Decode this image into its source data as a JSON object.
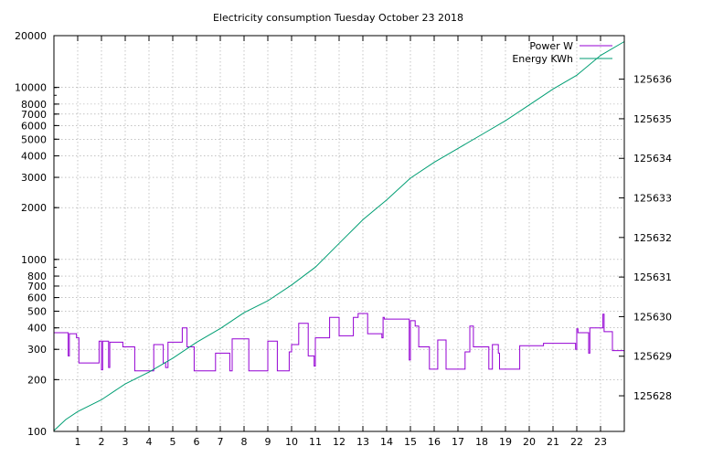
{
  "chart_data": {
    "type": "line",
    "title": "Electricity consumption Tuesday October 23 2018",
    "xlabel": "",
    "xlim": [
      0,
      24
    ],
    "xticks": [
      "1",
      "2",
      "3",
      "4",
      "5",
      "6",
      "7",
      "8",
      "9",
      "10",
      "11",
      "12",
      "13",
      "14",
      "15",
      "16",
      "17",
      "18",
      "19",
      "20",
      "21",
      "22",
      "23"
    ],
    "ylabel_left": "",
    "ylim_left": [
      100,
      20000
    ],
    "yscale_left": "log",
    "yticks_left": [
      "100",
      "200",
      "300",
      "400",
      "500",
      "600",
      "700",
      "800",
      "1000",
      "2000",
      "3000",
      "4000",
      "5000",
      "6000",
      "7000",
      "8000",
      "10000",
      "20000"
    ],
    "ylabel_right": "",
    "ylim_right": [
      125627.1,
      125637.1
    ],
    "yticks_right": [
      "125628",
      "125629",
      "125630",
      "125631",
      "125632",
      "125633",
      "125634",
      "125635",
      "125636"
    ],
    "grid": true,
    "legend_position": "top-right",
    "series": [
      {
        "name": "Power W",
        "axis": "left",
        "color": "#9400d3",
        "points": [
          [
            0,
            375
          ],
          [
            0.6,
            375
          ],
          [
            0.6,
            275
          ],
          [
            0.65,
            275
          ],
          [
            0.65,
            370
          ],
          [
            0.95,
            370
          ],
          [
            0.95,
            350
          ],
          [
            1.05,
            350
          ],
          [
            1.05,
            250
          ],
          [
            1.9,
            250
          ],
          [
            1.9,
            335
          ],
          [
            2.0,
            335
          ],
          [
            2.0,
            228
          ],
          [
            2.05,
            228
          ],
          [
            2.05,
            335
          ],
          [
            2.3,
            335
          ],
          [
            2.3,
            235
          ],
          [
            2.35,
            235
          ],
          [
            2.35,
            330
          ],
          [
            2.9,
            330
          ],
          [
            2.9,
            310
          ],
          [
            3.4,
            310
          ],
          [
            3.4,
            225
          ],
          [
            4.2,
            225
          ],
          [
            4.2,
            320
          ],
          [
            4.6,
            320
          ],
          [
            4.6,
            250
          ],
          [
            4.7,
            250
          ],
          [
            4.7,
            235
          ],
          [
            4.8,
            235
          ],
          [
            4.8,
            330
          ],
          [
            5.4,
            330
          ],
          [
            5.4,
            400
          ],
          [
            5.6,
            400
          ],
          [
            5.6,
            310
          ],
          [
            5.9,
            310
          ],
          [
            5.9,
            225
          ],
          [
            6.8,
            225
          ],
          [
            6.8,
            285
          ],
          [
            7.4,
            285
          ],
          [
            7.4,
            225
          ],
          [
            7.5,
            225
          ],
          [
            7.5,
            345
          ],
          [
            8.2,
            345
          ],
          [
            8.2,
            225
          ],
          [
            9.0,
            225
          ],
          [
            9.0,
            335
          ],
          [
            9.4,
            335
          ],
          [
            9.4,
            225
          ],
          [
            9.9,
            225
          ],
          [
            9.9,
            290
          ],
          [
            10.0,
            290
          ],
          [
            10.0,
            320
          ],
          [
            10.3,
            320
          ],
          [
            10.3,
            425
          ],
          [
            10.7,
            425
          ],
          [
            10.7,
            275
          ],
          [
            10.95,
            275
          ],
          [
            10.95,
            240
          ],
          [
            11.0,
            240
          ],
          [
            11.0,
            350
          ],
          [
            11.6,
            350
          ],
          [
            11.6,
            460
          ],
          [
            12.0,
            460
          ],
          [
            12.0,
            360
          ],
          [
            12.6,
            360
          ],
          [
            12.6,
            460
          ],
          [
            12.8,
            460
          ],
          [
            12.8,
            485
          ],
          [
            13.2,
            485
          ],
          [
            13.2,
            370
          ],
          [
            13.8,
            370
          ],
          [
            13.8,
            350
          ],
          [
            13.85,
            350
          ],
          [
            13.85,
            460
          ],
          [
            13.9,
            460
          ],
          [
            13.9,
            450
          ],
          [
            14.95,
            450
          ],
          [
            14.95,
            260
          ],
          [
            15.0,
            260
          ],
          [
            15.0,
            440
          ],
          [
            15.2,
            440
          ],
          [
            15.2,
            410
          ],
          [
            15.35,
            410
          ],
          [
            15.35,
            310
          ],
          [
            15.8,
            310
          ],
          [
            15.8,
            230
          ],
          [
            16.15,
            230
          ],
          [
            16.15,
            340
          ],
          [
            16.5,
            340
          ],
          [
            16.5,
            230
          ],
          [
            17.3,
            230
          ],
          [
            17.3,
            290
          ],
          [
            17.5,
            290
          ],
          [
            17.5,
            410
          ],
          [
            17.65,
            410
          ],
          [
            17.65,
            310
          ],
          [
            18.3,
            310
          ],
          [
            18.3,
            230
          ],
          [
            18.45,
            230
          ],
          [
            18.45,
            320
          ],
          [
            18.7,
            320
          ],
          [
            18.7,
            285
          ],
          [
            18.75,
            285
          ],
          [
            18.75,
            230
          ],
          [
            19.6,
            230
          ],
          [
            19.6,
            315
          ],
          [
            20.6,
            315
          ],
          [
            20.6,
            325
          ],
          [
            21.95,
            325
          ],
          [
            21.95,
            300
          ],
          [
            22.0,
            300
          ],
          [
            22.0,
            395
          ],
          [
            22.05,
            395
          ],
          [
            22.05,
            375
          ],
          [
            22.5,
            375
          ],
          [
            22.5,
            285
          ],
          [
            22.55,
            285
          ],
          [
            22.55,
            400
          ],
          [
            23.1,
            400
          ],
          [
            23.1,
            480
          ],
          [
            23.15,
            480
          ],
          [
            23.15,
            380
          ],
          [
            23.5,
            380
          ],
          [
            23.5,
            295
          ],
          [
            24,
            295
          ]
        ]
      },
      {
        "name": "Energy KWh",
        "axis": "right",
        "color": "#009e73",
        "points": [
          [
            0,
            125627.12
          ],
          [
            0.5,
            125627.4
          ],
          [
            1,
            125627.6
          ],
          [
            2,
            125627.9
          ],
          [
            3,
            125628.3
          ],
          [
            4,
            125628.6
          ],
          [
            5,
            125628.95
          ],
          [
            6,
            125629.35
          ],
          [
            7,
            125629.7
          ],
          [
            8,
            125630.1
          ],
          [
            9,
            125630.4
          ],
          [
            10,
            125630.8
          ],
          [
            11,
            125631.25
          ],
          [
            12,
            125631.85
          ],
          [
            13,
            125632.45
          ],
          [
            14,
            125632.95
          ],
          [
            15,
            125633.5
          ],
          [
            16,
            125633.9
          ],
          [
            17,
            125634.25
          ],
          [
            18,
            125634.6
          ],
          [
            19,
            125634.95
          ],
          [
            20,
            125635.35
          ],
          [
            21,
            125635.75
          ],
          [
            22,
            125636.1
          ],
          [
            23,
            125636.6
          ],
          [
            24,
            125636.95
          ]
        ]
      }
    ]
  }
}
